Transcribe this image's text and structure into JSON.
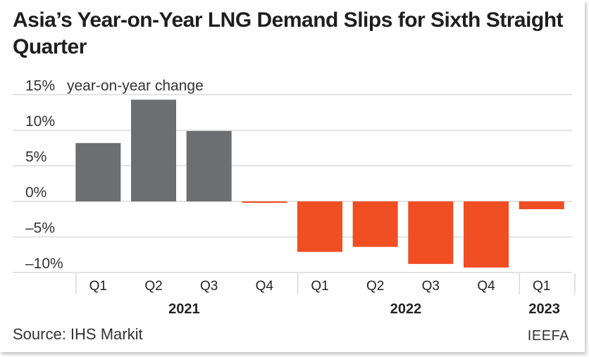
{
  "title": "Asia’s Year-on-Year LNG Demand Slips for Sixth Straight Quarter",
  "source": "Source: IHS Markit",
  "brand": "IEEFA",
  "colors": {
    "positive": "#6d6e71",
    "negative": "#f04e23",
    "grid": "#d4d4d4"
  },
  "chart_data": {
    "type": "bar",
    "ylabel": "year-on-year change",
    "unit": "%",
    "ylim": [
      -11,
      15
    ],
    "yticks": [
      {
        "value": 15,
        "label": "15%"
      },
      {
        "value": 10,
        "label": "10%"
      },
      {
        "value": 5,
        "label": "5%"
      },
      {
        "value": 0,
        "label": "0%"
      },
      {
        "value": -5,
        "label": "–5%"
      },
      {
        "value": -10,
        "label": "–10%"
      }
    ],
    "grid": true,
    "categories": [
      "Q1",
      "Q2",
      "Q3",
      "Q4",
      "Q1",
      "Q2",
      "Q3",
      "Q4",
      "Q1"
    ],
    "years": [
      {
        "label": "2021",
        "start": 0,
        "end": 3
      },
      {
        "label": "2022",
        "start": 4,
        "end": 7
      },
      {
        "label": "2023",
        "start": 8,
        "end": 8
      }
    ],
    "values": [
      8.2,
      14.3,
      9.9,
      -0.2,
      -7.1,
      -6.4,
      -8.8,
      -9.3,
      -1.1
    ]
  }
}
